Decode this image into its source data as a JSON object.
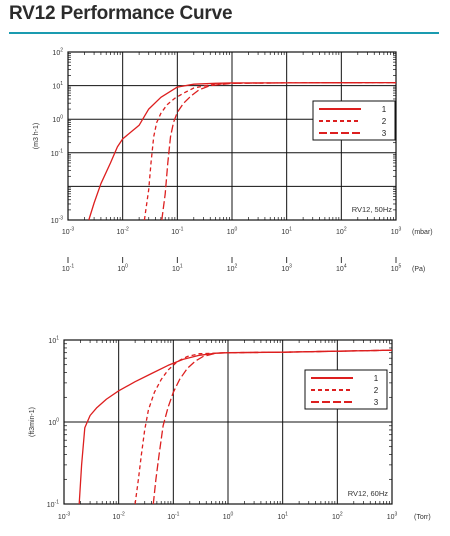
{
  "page": {
    "title": "RV12 Performance Curve",
    "accent_color": "#1a9bb0",
    "curve_color": "#dd1f1f"
  },
  "chart_data": [
    {
      "type": "line",
      "title": "",
      "ylabel": "(m3 h-1)",
      "xscale": "log",
      "yscale": "log",
      "xlim": [
        0.001,
        1000
      ],
      "ylim": [
        0.001,
        100
      ],
      "grid": true,
      "legend": {
        "placement": "top-right",
        "entries": [
          "1",
          "2",
          "3"
        ]
      },
      "annotation": "RV12, 50Hz",
      "x_axes": [
        {
          "unit": "(mbar)",
          "tick_labels": [
            {
              "base": "10",
              "exp": "-3"
            },
            {
              "base": "10",
              "exp": "-2"
            },
            {
              "base": "10",
              "exp": "-1"
            },
            {
              "base": "10",
              "exp": "0"
            },
            {
              "base": "10",
              "exp": "1"
            },
            {
              "base": "10",
              "exp": "2"
            },
            {
              "base": "10",
              "exp": "3"
            }
          ]
        },
        {
          "unit": "(Pa)",
          "tick_labels": [
            {
              "base": "10",
              "exp": "-1"
            },
            {
              "base": "10",
              "exp": "0"
            },
            {
              "base": "10",
              "exp": "1"
            },
            {
              "base": "10",
              "exp": "2"
            },
            {
              "base": "10",
              "exp": "3"
            },
            {
              "base": "10",
              "exp": "4"
            },
            {
              "base": "10",
              "exp": "5"
            }
          ]
        }
      ],
      "y_tick_labels": [
        {
          "base": "10",
          "exp": "-3"
        },
        {
          "base": "10",
          "exp": "-1"
        },
        {
          "base": "10",
          "exp": "0"
        },
        {
          "base": "10",
          "exp": "1"
        },
        {
          "base": "10",
          "exp": "2"
        }
      ],
      "series": [
        {
          "name": "1",
          "style": "solid",
          "x": [
            0.0024,
            0.003,
            0.004,
            0.006,
            0.008,
            0.01,
            0.015,
            0.02,
            0.03,
            0.05,
            0.1,
            0.2,
            0.5,
            1,
            10,
            100,
            1000
          ],
          "y": [
            0.001,
            0.0032,
            0.012,
            0.05,
            0.15,
            0.26,
            0.45,
            0.66,
            2.0,
            4.5,
            9.0,
            11.0,
            11.7,
            12.0,
            12.0,
            12.2,
            12.3
          ]
        },
        {
          "name": "2",
          "style": "dashed",
          "x": [
            0.025,
            0.03,
            0.033,
            0.037,
            0.042,
            0.05,
            0.065,
            0.09,
            0.13,
            0.2,
            0.4,
            1,
            10,
            100,
            1000
          ],
          "y": [
            0.001,
            0.008,
            0.05,
            0.3,
            0.8,
            1.5,
            2.7,
            4.2,
            6.0,
            8.5,
            10.5,
            11.8,
            12.0,
            12.2,
            12.3
          ]
        },
        {
          "name": "3",
          "style": "longdash",
          "x": [
            0.052,
            0.06,
            0.067,
            0.075,
            0.085,
            0.1,
            0.13,
            0.18,
            0.25,
            0.4,
            1,
            10,
            100,
            1000
          ],
          "y": [
            0.001,
            0.006,
            0.05,
            0.3,
            0.8,
            1.6,
            3.0,
            5.0,
            7.5,
            10.0,
            11.7,
            12.0,
            12.2,
            12.3
          ]
        }
      ]
    },
    {
      "type": "line",
      "title": "",
      "xlabel": "(Torr)",
      "ylabel": "(ft3min-1)",
      "xscale": "log",
      "yscale": "log",
      "xlim": [
        0.001,
        1000
      ],
      "ylim": [
        0.1,
        10
      ],
      "grid": true,
      "legend": {
        "placement": "right",
        "entries": [
          "1",
          "2",
          "3"
        ]
      },
      "annotation": "RV12, 60Hz",
      "x_tick_labels": [
        {
          "base": "10",
          "exp": "-3"
        },
        {
          "base": "10",
          "exp": "-2"
        },
        {
          "base": "10",
          "exp": "-1"
        },
        {
          "base": "10",
          "exp": "0"
        },
        {
          "base": "10",
          "exp": "1"
        },
        {
          "base": "10",
          "exp": "2"
        },
        {
          "base": "10",
          "exp": "3"
        }
      ],
      "y_tick_labels": [
        {
          "base": "10",
          "exp": "-1"
        },
        {
          "base": "10",
          "exp": "0"
        },
        {
          "base": "10",
          "exp": "1"
        }
      ],
      "series": [
        {
          "name": "1",
          "style": "solid",
          "x": [
            0.0019,
            0.0021,
            0.0024,
            0.003,
            0.004,
            0.006,
            0.01,
            0.02,
            0.04,
            0.08,
            0.15,
            0.3,
            0.6,
            1,
            10,
            100,
            1000
          ],
          "y": [
            0.1,
            0.3,
            0.85,
            1.2,
            1.5,
            1.9,
            2.4,
            3.1,
            3.9,
            4.9,
            5.8,
            6.5,
            6.9,
            7.0,
            7.1,
            7.3,
            7.5
          ]
        },
        {
          "name": "2",
          "style": "dashed",
          "x": [
            0.02,
            0.023,
            0.026,
            0.03,
            0.035,
            0.045,
            0.06,
            0.08,
            0.12,
            0.18,
            0.3,
            1,
            10,
            100,
            1000
          ],
          "y": [
            0.1,
            0.2,
            0.4,
            0.8,
            1.4,
            2.3,
            3.3,
            4.3,
            5.5,
            6.3,
            6.8,
            7.0,
            7.1,
            7.3,
            7.5
          ]
        },
        {
          "name": "3",
          "style": "longdash",
          "x": [
            0.043,
            0.048,
            0.055,
            0.065,
            0.08,
            0.1,
            0.13,
            0.18,
            0.25,
            0.35,
            0.6,
            1,
            10,
            100,
            1000
          ],
          "y": [
            0.1,
            0.2,
            0.4,
            0.9,
            1.5,
            2.3,
            3.3,
            4.5,
            5.5,
            6.3,
            6.9,
            7.0,
            7.1,
            7.3,
            7.5
          ]
        }
      ]
    }
  ]
}
